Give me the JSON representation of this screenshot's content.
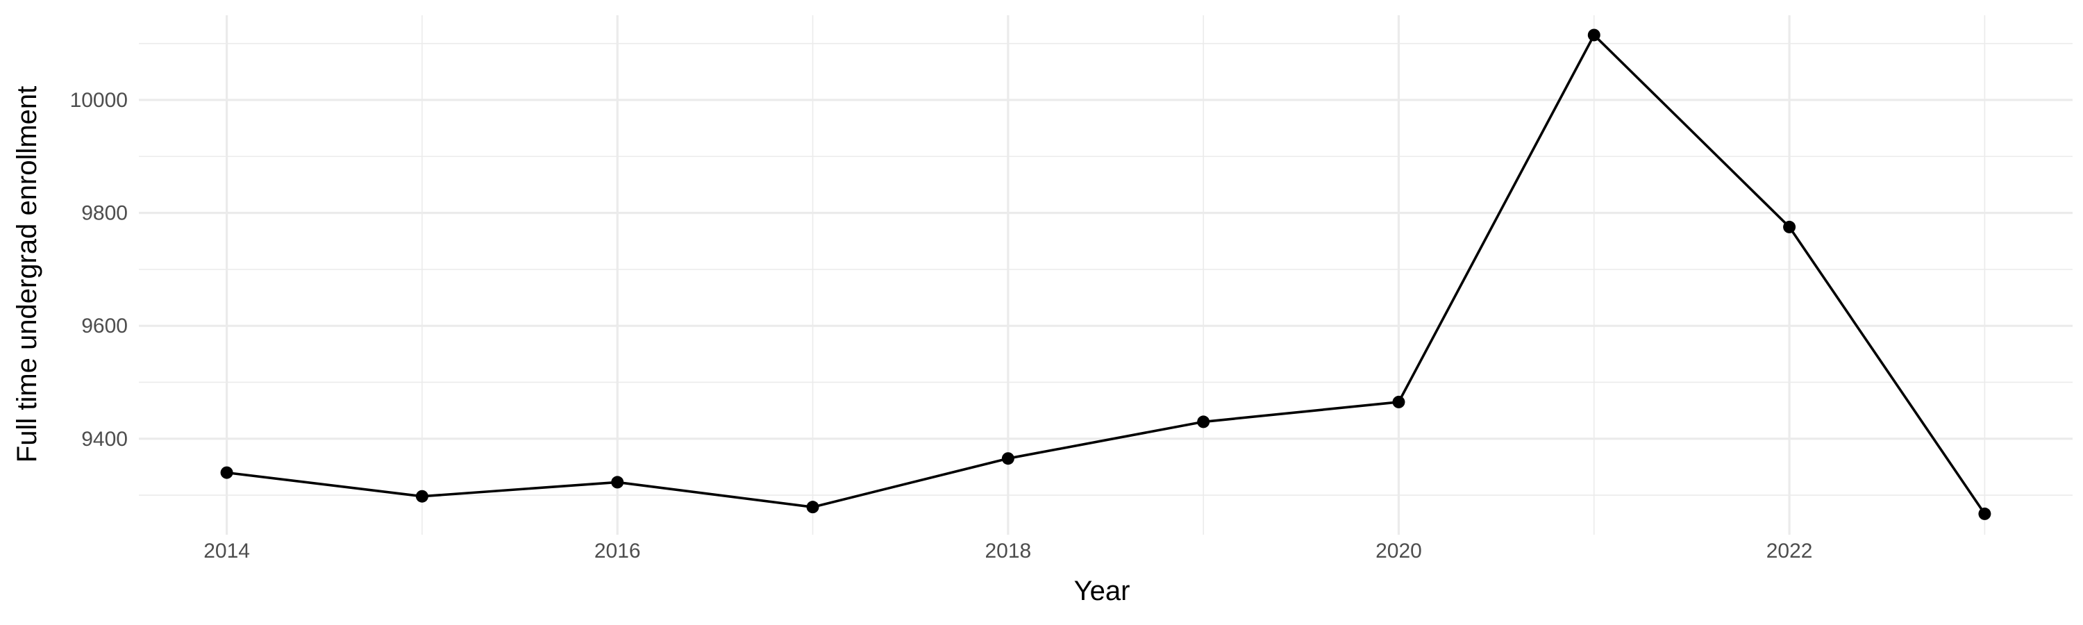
{
  "chart_data": {
    "type": "line",
    "title": "",
    "xlabel": "Year",
    "ylabel": "Full time undergrad enrollment",
    "x": [
      2014,
      2015,
      2016,
      2017,
      2018,
      2019,
      2020,
      2021,
      2022,
      2023
    ],
    "series": [
      {
        "values": [
          9340,
          9298,
          9323,
          9279,
          9365,
          9430,
          9465,
          10115,
          9775,
          9267
        ]
      }
    ],
    "xlim": [
      2013.55,
      2023.45
    ],
    "ylim": [
      9230,
      10150
    ],
    "x_ticks": [
      2014,
      2016,
      2018,
      2020,
      2022
    ],
    "x_minor_ticks": [
      2015,
      2017,
      2019,
      2021,
      2023
    ],
    "y_ticks": [
      9400,
      9600,
      9800,
      10000
    ],
    "y_minor_ticks": [
      9300,
      9500,
      9700,
      9900,
      10100
    ],
    "grid": true,
    "legend": "none",
    "colors": {
      "line": "#000000",
      "grid": "#ebebeb",
      "tick_text": "#4d4d4d",
      "background": "#ffffff"
    }
  }
}
